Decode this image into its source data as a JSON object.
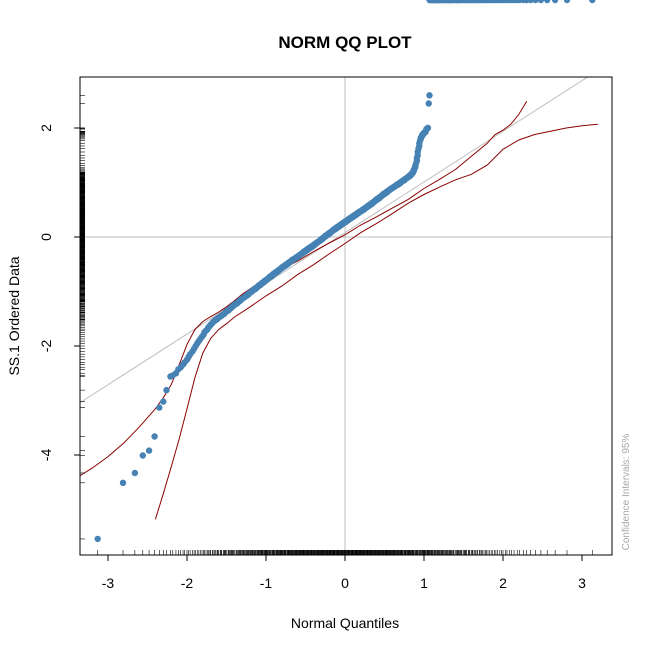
{
  "chart_data": {
    "type": "scatter",
    "title": "NORM QQ PLOT",
    "xlabel": "Normal Quantiles",
    "ylabel": "SS.1 Ordered Data",
    "xlim": [
      -3.4,
      3.4
    ],
    "ylim": [
      -5.9,
      2.95
    ],
    "x_ticks": [
      -3,
      -2,
      -1,
      0,
      1,
      2,
      3
    ],
    "y_ticks": [
      -4,
      -2,
      0,
      2
    ],
    "grid": "reference lines at x=0 and y=0",
    "confidence_note": "Confidence Intervals: 95%",
    "point_color": "#4682b4",
    "band_color": "#8b0000",
    "refline_color": "#bebebe",
    "reference_line": {
      "intercept": 0.08,
      "slope": 0.93
    },
    "n_points": 500,
    "quantile_x": [
      -3.13,
      -2.81,
      -2.66,
      -2.56,
      -2.48,
      -2.41,
      -2.35,
      -2.3,
      -2.26,
      -2.21,
      -2.18,
      -2.14,
      -2.11,
      -2.08,
      -2.05,
      -2.03,
      -2.0,
      -1.98,
      -1.96,
      -1.93,
      -1.91,
      -1.89,
      -1.87,
      -1.85,
      -1.83,
      -1.81,
      -1.79,
      -1.78,
      -1.76,
      -1.74,
      -1.73,
      -1.71,
      -1.7,
      -1.68,
      -1.67,
      -1.65,
      -1.64,
      -1.62,
      -1.61,
      -1.6,
      -1.58,
      -1.57,
      -1.56,
      -1.54,
      -1.53,
      -1.52,
      -1.51,
      -1.5,
      -1.48,
      -1.47,
      -1.46,
      -1.45,
      -1.44,
      -1.43,
      -1.42,
      -1.41,
      -1.4,
      -1.38,
      -1.37,
      -1.36,
      -1.35,
      -1.34,
      -1.33,
      -1.32,
      -1.32,
      -1.31,
      -1.3,
      -1.29,
      -1.28,
      -1.27,
      -1.26,
      -1.25,
      -1.24,
      -1.23,
      -1.22,
      -1.22,
      -1.21,
      -1.2,
      -1.19,
      -1.18,
      -1.17,
      -1.17,
      -1.16,
      -1.15,
      -1.14,
      -1.13,
      -1.13,
      -1.12,
      -1.11,
      -1.1,
      -1.1,
      -1.09,
      -1.08,
      -1.07,
      -1.07,
      -1.06,
      -1.05,
      -1.05,
      -1.04,
      -1.03,
      -1.02,
      -1.02,
      -1.01,
      -1.0,
      -1.0,
      -0.99,
      -0.98,
      -0.98,
      -0.97,
      -0.96,
      -0.96,
      -0.95,
      -0.94,
      -0.94,
      -0.93,
      -0.92,
      -0.92,
      -0.91,
      -0.91,
      -0.9,
      -0.89,
      -0.89,
      -0.88,
      -0.87,
      -0.87,
      -0.86,
      -0.86,
      -0.85,
      -0.84,
      -0.84,
      -0.83,
      -0.83,
      -0.82,
      -0.81,
      -0.81,
      -0.8,
      -0.8,
      -0.79,
      -0.79,
      -0.78,
      -0.77,
      -0.77,
      -0.76,
      -0.76,
      -0.75,
      -0.75,
      -0.74,
      -0.73,
      -0.73,
      -0.72,
      -0.72,
      -0.71,
      -0.71,
      -0.7,
      -0.7,
      -0.69,
      -0.69,
      -0.68,
      -0.68,
      -0.67,
      -0.67,
      -0.66,
      -0.65,
      -0.65,
      -0.64,
      -0.64,
      -0.63,
      -0.63,
      -0.62,
      -0.62,
      -0.61,
      -0.61,
      -0.6,
      -0.6,
      -0.59,
      -0.59,
      -0.58,
      -0.58,
      -0.57,
      -0.57,
      -0.56,
      -0.56,
      -0.55,
      -0.55,
      -0.54,
      -0.54,
      -0.53,
      -0.53,
      -0.53,
      -0.52,
      -0.52,
      -0.51,
      -0.51,
      -0.5,
      -0.5,
      -0.49,
      -0.49,
      -0.48,
      -0.48,
      -0.47,
      -0.47,
      -0.46,
      -0.46,
      -0.45,
      -0.45,
      -0.44,
      -0.44,
      -0.44,
      -0.43,
      -0.43,
      -0.42,
      -0.42,
      -0.41,
      -0.41,
      -0.4,
      -0.4,
      -0.39,
      -0.39,
      -0.39,
      -0.38,
      -0.38,
      -0.37,
      -0.37,
      -0.36,
      -0.36,
      -0.35,
      -0.35,
      -0.35,
      -0.34,
      -0.34,
      -0.33,
      -0.33,
      -0.32,
      -0.32,
      -0.31,
      -0.31,
      -0.31,
      -0.3,
      -0.3,
      -0.29,
      -0.29,
      -0.28,
      -0.28,
      -0.28,
      -0.27,
      -0.27,
      -0.26,
      -0.26,
      -0.25,
      -0.25,
      -0.25,
      -0.24,
      -0.24,
      -0.23,
      -0.23,
      -0.22,
      -0.22,
      -0.22,
      -0.21,
      -0.21,
      -0.2,
      -0.2,
      -0.19,
      -0.19,
      -0.19,
      -0.18,
      -0.18,
      -0.17,
      -0.17,
      -0.16,
      -0.16,
      -0.16,
      -0.15,
      -0.15,
      -0.14,
      -0.14,
      -0.14,
      -0.13,
      -0.13,
      -0.12,
      -0.12,
      -0.11,
      -0.11,
      -0.11,
      -0.1,
      -0.1,
      -0.09,
      -0.09,
      -0.09,
      -0.08,
      -0.08,
      -0.07,
      -0.07,
      -0.06,
      -0.06,
      -0.06,
      -0.05,
      -0.05,
      -0.04,
      -0.04,
      -0.04,
      -0.03,
      -0.03,
      -0.02,
      -0.02,
      -0.01,
      -0.01,
      -0.01,
      0.0,
      0.0,
      0.01,
      0.01,
      0.01,
      0.02,
      0.02,
      0.03,
      0.03,
      0.04,
      0.04,
      0.04,
      0.05,
      0.05,
      0.06,
      0.06,
      0.06,
      0.07,
      0.07,
      0.08,
      0.08,
      0.09,
      0.09,
      0.09,
      0.1,
      0.1,
      0.11,
      0.11,
      0.11,
      0.12,
      0.12,
      0.13,
      0.13,
      0.14,
      0.14,
      0.14,
      0.15,
      0.15,
      0.16,
      0.16,
      0.16,
      0.17,
      0.17,
      0.18,
      0.18,
      0.19,
      0.19,
      0.19,
      0.2,
      0.2,
      0.21,
      0.21,
      0.22,
      0.22,
      0.22,
      0.23,
      0.23,
      0.24,
      0.24,
      0.25,
      0.25,
      0.25,
      0.26,
      0.26,
      0.27,
      0.27,
      0.28,
      0.28,
      0.28,
      0.29,
      0.29,
      0.3,
      0.3,
      0.31,
      0.31,
      0.31,
      0.32,
      0.32,
      0.33,
      0.33,
      0.34,
      0.34,
      0.35,
      0.35,
      0.35,
      0.36,
      0.36,
      0.37,
      0.37,
      0.38,
      0.38,
      0.39,
      0.39,
      0.39,
      0.4,
      0.4,
      0.41,
      0.41,
      0.42,
      0.42,
      0.43,
      0.43,
      0.44,
      0.44,
      0.44,
      0.45,
      0.45,
      0.46,
      0.46,
      0.47,
      0.47,
      0.48,
      0.48,
      0.49,
      0.49,
      0.5,
      0.5,
      0.51,
      0.51,
      0.52,
      0.52,
      0.53,
      0.53,
      0.53,
      0.54,
      0.54,
      0.55,
      0.55,
      0.56,
      0.56,
      0.57,
      0.57,
      0.58,
      0.58,
      0.59,
      0.59,
      0.6,
      0.6,
      0.61,
      0.61,
      0.62,
      0.62,
      0.63,
      0.63,
      0.64,
      0.64,
      0.65,
      0.65,
      0.66,
      0.67,
      0.67,
      0.68,
      0.68,
      0.69,
      0.69,
      0.7,
      0.7,
      0.71,
      0.71,
      0.72,
      0.72,
      0.73,
      0.73,
      0.74,
      0.75,
      0.75,
      0.76,
      0.76,
      0.77,
      0.77,
      0.78,
      0.79,
      0.79,
      0.8,
      0.8,
      0.81,
      0.81,
      0.82,
      0.83,
      0.83,
      0.84,
      0.84,
      0.85,
      0.86,
      0.86,
      0.87,
      0.87,
      0.88,
      0.89,
      0.89,
      0.9,
      0.91,
      0.91,
      0.92,
      0.92,
      0.93,
      0.94,
      0.94,
      0.95,
      0.96,
      0.96,
      0.97,
      0.98,
      0.98,
      0.99,
      1.0,
      1.0,
      1.01,
      1.02,
      1.02,
      1.03,
      1.04,
      1.05,
      1.05,
      1.06,
      1.07,
      1.07,
      1.08,
      1.09,
      1.1,
      1.1,
      1.11,
      1.12,
      1.13,
      1.13,
      1.14,
      1.15,
      1.16,
      1.17,
      1.17,
      1.18,
      1.19,
      1.2,
      1.21,
      1.22,
      1.22,
      1.23,
      1.24,
      1.25,
      1.26,
      1.27,
      1.28,
      1.29,
      1.3,
      1.31,
      1.32,
      1.32,
      1.33,
      1.34,
      1.35,
      1.36,
      1.37,
      1.38,
      1.4,
      1.41,
      1.42,
      1.43,
      1.44,
      1.45,
      1.46,
      1.47,
      1.48,
      1.5,
      1.51,
      1.52,
      1.53,
      1.54,
      1.56,
      1.57,
      1.58,
      1.6,
      1.61,
      1.62,
      1.64,
      1.65,
      1.67,
      1.68,
      1.7,
      1.71,
      1.73,
      1.74,
      1.76,
      1.78,
      1.79,
      1.81,
      1.83,
      1.85,
      1.87,
      1.89,
      1.91,
      1.93,
      1.96,
      1.98,
      2.0,
      2.03,
      2.05,
      2.08,
      2.11,
      2.14,
      2.18,
      2.21,
      2.26,
      2.3,
      2.35,
      2.41,
      2.48,
      2.56,
      2.66,
      2.81,
      3.13
    ],
    "ordered_y": [
      -5.54,
      -4.51,
      -4.33,
      -4.01,
      -3.92,
      -3.66,
      -3.13,
      -3.02,
      -2.81,
      -2.56,
      -2.54,
      -2.5,
      -2.43,
      -2.39,
      -2.34,
      -2.3,
      -2.25,
      -2.2,
      -2.15,
      -2.1,
      -2.05,
      -2.0,
      -1.95,
      -1.91,
      -1.87,
      -1.83,
      -1.79,
      -1.75,
      -1.72,
      -1.69,
      -1.66,
      -1.63,
      -1.61,
      -1.58,
      -1.56,
      -1.54,
      -1.52,
      -1.51,
      -1.49,
      -1.48,
      -1.46,
      -1.45,
      -1.44,
      -1.42,
      -1.41,
      -1.39,
      -1.38,
      -1.36,
      -1.35,
      -1.34,
      -1.32,
      -1.31,
      -1.3,
      -1.28,
      -1.27,
      -1.26,
      -1.24,
      -1.23,
      -1.22,
      -1.21,
      -1.19,
      -1.18,
      -1.17,
      -1.16,
      -1.15,
      -1.14,
      -1.13,
      -1.12,
      -1.11,
      -1.1,
      -1.09,
      -1.08,
      -1.07,
      -1.06,
      -1.05,
      -1.04,
      -1.03,
      -1.02,
      -1.01,
      -1.0,
      -0.99,
      -0.98,
      -0.97,
      -0.96,
      -0.95,
      -0.95,
      -0.94,
      -0.93,
      -0.92,
      -0.91,
      -0.9,
      -0.89,
      -0.88,
      -0.88,
      -0.87,
      -0.86,
      -0.85,
      -0.84,
      -0.84,
      -0.83,
      -0.82,
      -0.81,
      -0.8,
      -0.8,
      -0.79,
      -0.78,
      -0.77,
      -0.77,
      -0.76,
      -0.75,
      -0.74,
      -0.73,
      -0.73,
      -0.72,
      -0.71,
      -0.71,
      -0.7,
      -0.69,
      -0.68,
      -0.68,
      -0.67,
      -0.66,
      -0.66,
      -0.65,
      -0.64,
      -0.64,
      -0.63,
      -0.62,
      -0.62,
      -0.61,
      -0.6,
      -0.6,
      -0.59,
      -0.58,
      -0.58,
      -0.57,
      -0.56,
      -0.56,
      -0.55,
      -0.55,
      -0.54,
      -0.53,
      -0.53,
      -0.52,
      -0.52,
      -0.51,
      -0.5,
      -0.5,
      -0.49,
      -0.49,
      -0.48,
      -0.47,
      -0.47,
      -0.46,
      -0.46,
      -0.45,
      -0.45,
      -0.44,
      -0.44,
      -0.43,
      -0.42,
      -0.42,
      -0.41,
      -0.41,
      -0.4,
      -0.4,
      -0.39,
      -0.39,
      -0.38,
      -0.38,
      -0.37,
      -0.37,
      -0.36,
      -0.36,
      -0.35,
      -0.35,
      -0.34,
      -0.34,
      -0.33,
      -0.33,
      -0.32,
      -0.32,
      -0.31,
      -0.31,
      -0.3,
      -0.3,
      -0.29,
      -0.29,
      -0.28,
      -0.28,
      -0.27,
      -0.27,
      -0.26,
      -0.26,
      -0.25,
      -0.25,
      -0.24,
      -0.24,
      -0.23,
      -0.23,
      -0.22,
      -0.22,
      -0.21,
      -0.21,
      -0.2,
      -0.2,
      -0.19,
      -0.19,
      -0.19,
      -0.18,
      -0.18,
      -0.17,
      -0.17,
      -0.16,
      -0.16,
      -0.15,
      -0.15,
      -0.14,
      -0.14,
      -0.13,
      -0.13,
      -0.12,
      -0.12,
      -0.11,
      -0.11,
      -0.1,
      -0.1,
      -0.1,
      -0.09,
      -0.09,
      -0.08,
      -0.08,
      -0.07,
      -0.07,
      -0.06,
      -0.06,
      -0.05,
      -0.05,
      -0.04,
      -0.04,
      -0.03,
      -0.03,
      -0.02,
      -0.02,
      -0.01,
      -0.01,
      0.0,
      0.0,
      0.01,
      0.01,
      0.02,
      0.02,
      0.03,
      0.03,
      0.03,
      0.04,
      0.04,
      0.05,
      0.05,
      0.06,
      0.06,
      0.07,
      0.07,
      0.08,
      0.08,
      0.09,
      0.09,
      0.1,
      0.1,
      0.11,
      0.11,
      0.11,
      0.12,
      0.12,
      0.13,
      0.13,
      0.14,
      0.14,
      0.15,
      0.15,
      0.15,
      0.16,
      0.16,
      0.17,
      0.17,
      0.18,
      0.18,
      0.18,
      0.19,
      0.19,
      0.2,
      0.2,
      0.21,
      0.21,
      0.21,
      0.22,
      0.22,
      0.23,
      0.23,
      0.24,
      0.24,
      0.24,
      0.25,
      0.25,
      0.26,
      0.26,
      0.27,
      0.27,
      0.27,
      0.28,
      0.28,
      0.29,
      0.29,
      0.29,
      0.3,
      0.3,
      0.31,
      0.31,
      0.32,
      0.32,
      0.32,
      0.33,
      0.33,
      0.34,
      0.34,
      0.34,
      0.35,
      0.35,
      0.36,
      0.36,
      0.36,
      0.37,
      0.37,
      0.38,
      0.38,
      0.38,
      0.39,
      0.39,
      0.4,
      0.4,
      0.41,
      0.41,
      0.41,
      0.42,
      0.42,
      0.43,
      0.43,
      0.43,
      0.44,
      0.44,
      0.45,
      0.45,
      0.45,
      0.46,
      0.46,
      0.47,
      0.47,
      0.47,
      0.48,
      0.48,
      0.49,
      0.49,
      0.5,
      0.5,
      0.5,
      0.51,
      0.51,
      0.52,
      0.52,
      0.53,
      0.53,
      0.53,
      0.54,
      0.54,
      0.55,
      0.55,
      0.56,
      0.56,
      0.57,
      0.57,
      0.57,
      0.58,
      0.58,
      0.59,
      0.59,
      0.6,
      0.6,
      0.61,
      0.61,
      0.62,
      0.62,
      0.63,
      0.63,
      0.64,
      0.64,
      0.65,
      0.65,
      0.66,
      0.66,
      0.67,
      0.67,
      0.68,
      0.68,
      0.69,
      0.69,
      0.7,
      0.7,
      0.71,
      0.71,
      0.72,
      0.72,
      0.73,
      0.73,
      0.74,
      0.74,
      0.75,
      0.75,
      0.76,
      0.76,
      0.77,
      0.78,
      0.78,
      0.79,
      0.79,
      0.8,
      0.8,
      0.81,
      0.81,
      0.82,
      0.82,
      0.83,
      0.83,
      0.84,
      0.84,
      0.85,
      0.85,
      0.86,
      0.86,
      0.87,
      0.87,
      0.88,
      0.88,
      0.89,
      0.89,
      0.9,
      0.9,
      0.91,
      0.91,
      0.92,
      0.92,
      0.93,
      0.93,
      0.94,
      0.94,
      0.95,
      0.95,
      0.96,
      0.96,
      0.97,
      0.97,
      0.98,
      0.98,
      0.99,
      0.99,
      1.0,
      1.0,
      1.01,
      1.02,
      1.02,
      1.03,
      1.03,
      1.04,
      1.04,
      1.05,
      1.06,
      1.06,
      1.07,
      1.07,
      1.08,
      1.09,
      1.09,
      1.1,
      1.1,
      1.11,
      1.12,
      1.12,
      1.13,
      1.14,
      1.15,
      1.16,
      1.17,
      1.18,
      1.19,
      1.21,
      1.23,
      1.25,
      1.28,
      1.31,
      1.35,
      1.4,
      1.45,
      1.5,
      1.56,
      1.62,
      1.67,
      1.72,
      1.77,
      1.8,
      1.82,
      1.84,
      1.86,
      1.88,
      1.89,
      1.9,
      1.91,
      1.92,
      1.93,
      1.94,
      1.98,
      1.99,
      2.0,
      2.0,
      2.45,
      2.6
    ],
    "confidence_band": {
      "upper": {
        "x": [
          -3.4,
          -3.2,
          -3.0,
          -2.8,
          -2.6,
          -2.4,
          -2.3,
          -2.2,
          -2.1,
          -2.0,
          -1.9,
          -1.8,
          -1.7,
          -1.6,
          -1.5,
          -1.4,
          -1.3,
          -1.2,
          -1.1,
          -1.0,
          -0.9,
          -0.8,
          -0.6,
          -0.4,
          -0.2,
          0.0,
          0.2,
          0.4,
          0.6,
          0.8,
          1.0,
          1.2,
          1.4,
          1.6,
          1.8,
          1.9,
          2.0,
          2.1,
          2.2,
          2.3
        ],
        "y": [
          -4.42,
          -4.24,
          -4.03,
          -3.78,
          -3.48,
          -3.15,
          -2.95,
          -2.71,
          -2.35,
          -1.97,
          -1.7,
          -1.55,
          -1.46,
          -1.38,
          -1.28,
          -1.17,
          -1.05,
          -0.95,
          -0.85,
          -0.76,
          -0.68,
          -0.59,
          -0.44,
          -0.27,
          -0.11,
          0.04,
          0.22,
          0.37,
          0.53,
          0.69,
          0.89,
          1.06,
          1.24,
          1.48,
          1.72,
          1.88,
          1.96,
          2.07,
          2.25,
          2.49
        ]
      },
      "lower": {
        "x": [
          -2.4,
          -2.3,
          -2.2,
          -2.1,
          -2.0,
          -1.9,
          -1.8,
          -1.7,
          -1.6,
          -1.5,
          -1.4,
          -1.2,
          -1.0,
          -0.8,
          -0.6,
          -0.4,
          -0.2,
          0.0,
          0.2,
          0.4,
          0.6,
          0.8,
          1.0,
          1.2,
          1.4,
          1.6,
          1.8,
          2.0,
          2.2,
          2.4,
          2.6,
          2.8,
          3.0,
          3.2
        ],
        "y": [
          -5.18,
          -4.71,
          -4.22,
          -3.71,
          -3.15,
          -2.58,
          -2.13,
          -1.86,
          -1.7,
          -1.59,
          -1.47,
          -1.28,
          -1.08,
          -0.9,
          -0.69,
          -0.51,
          -0.31,
          -0.12,
          0.08,
          0.25,
          0.43,
          0.62,
          0.78,
          0.92,
          1.05,
          1.15,
          1.32,
          1.61,
          1.78,
          1.88,
          1.94,
          2.0,
          2.04,
          2.07
        ]
      }
    }
  }
}
